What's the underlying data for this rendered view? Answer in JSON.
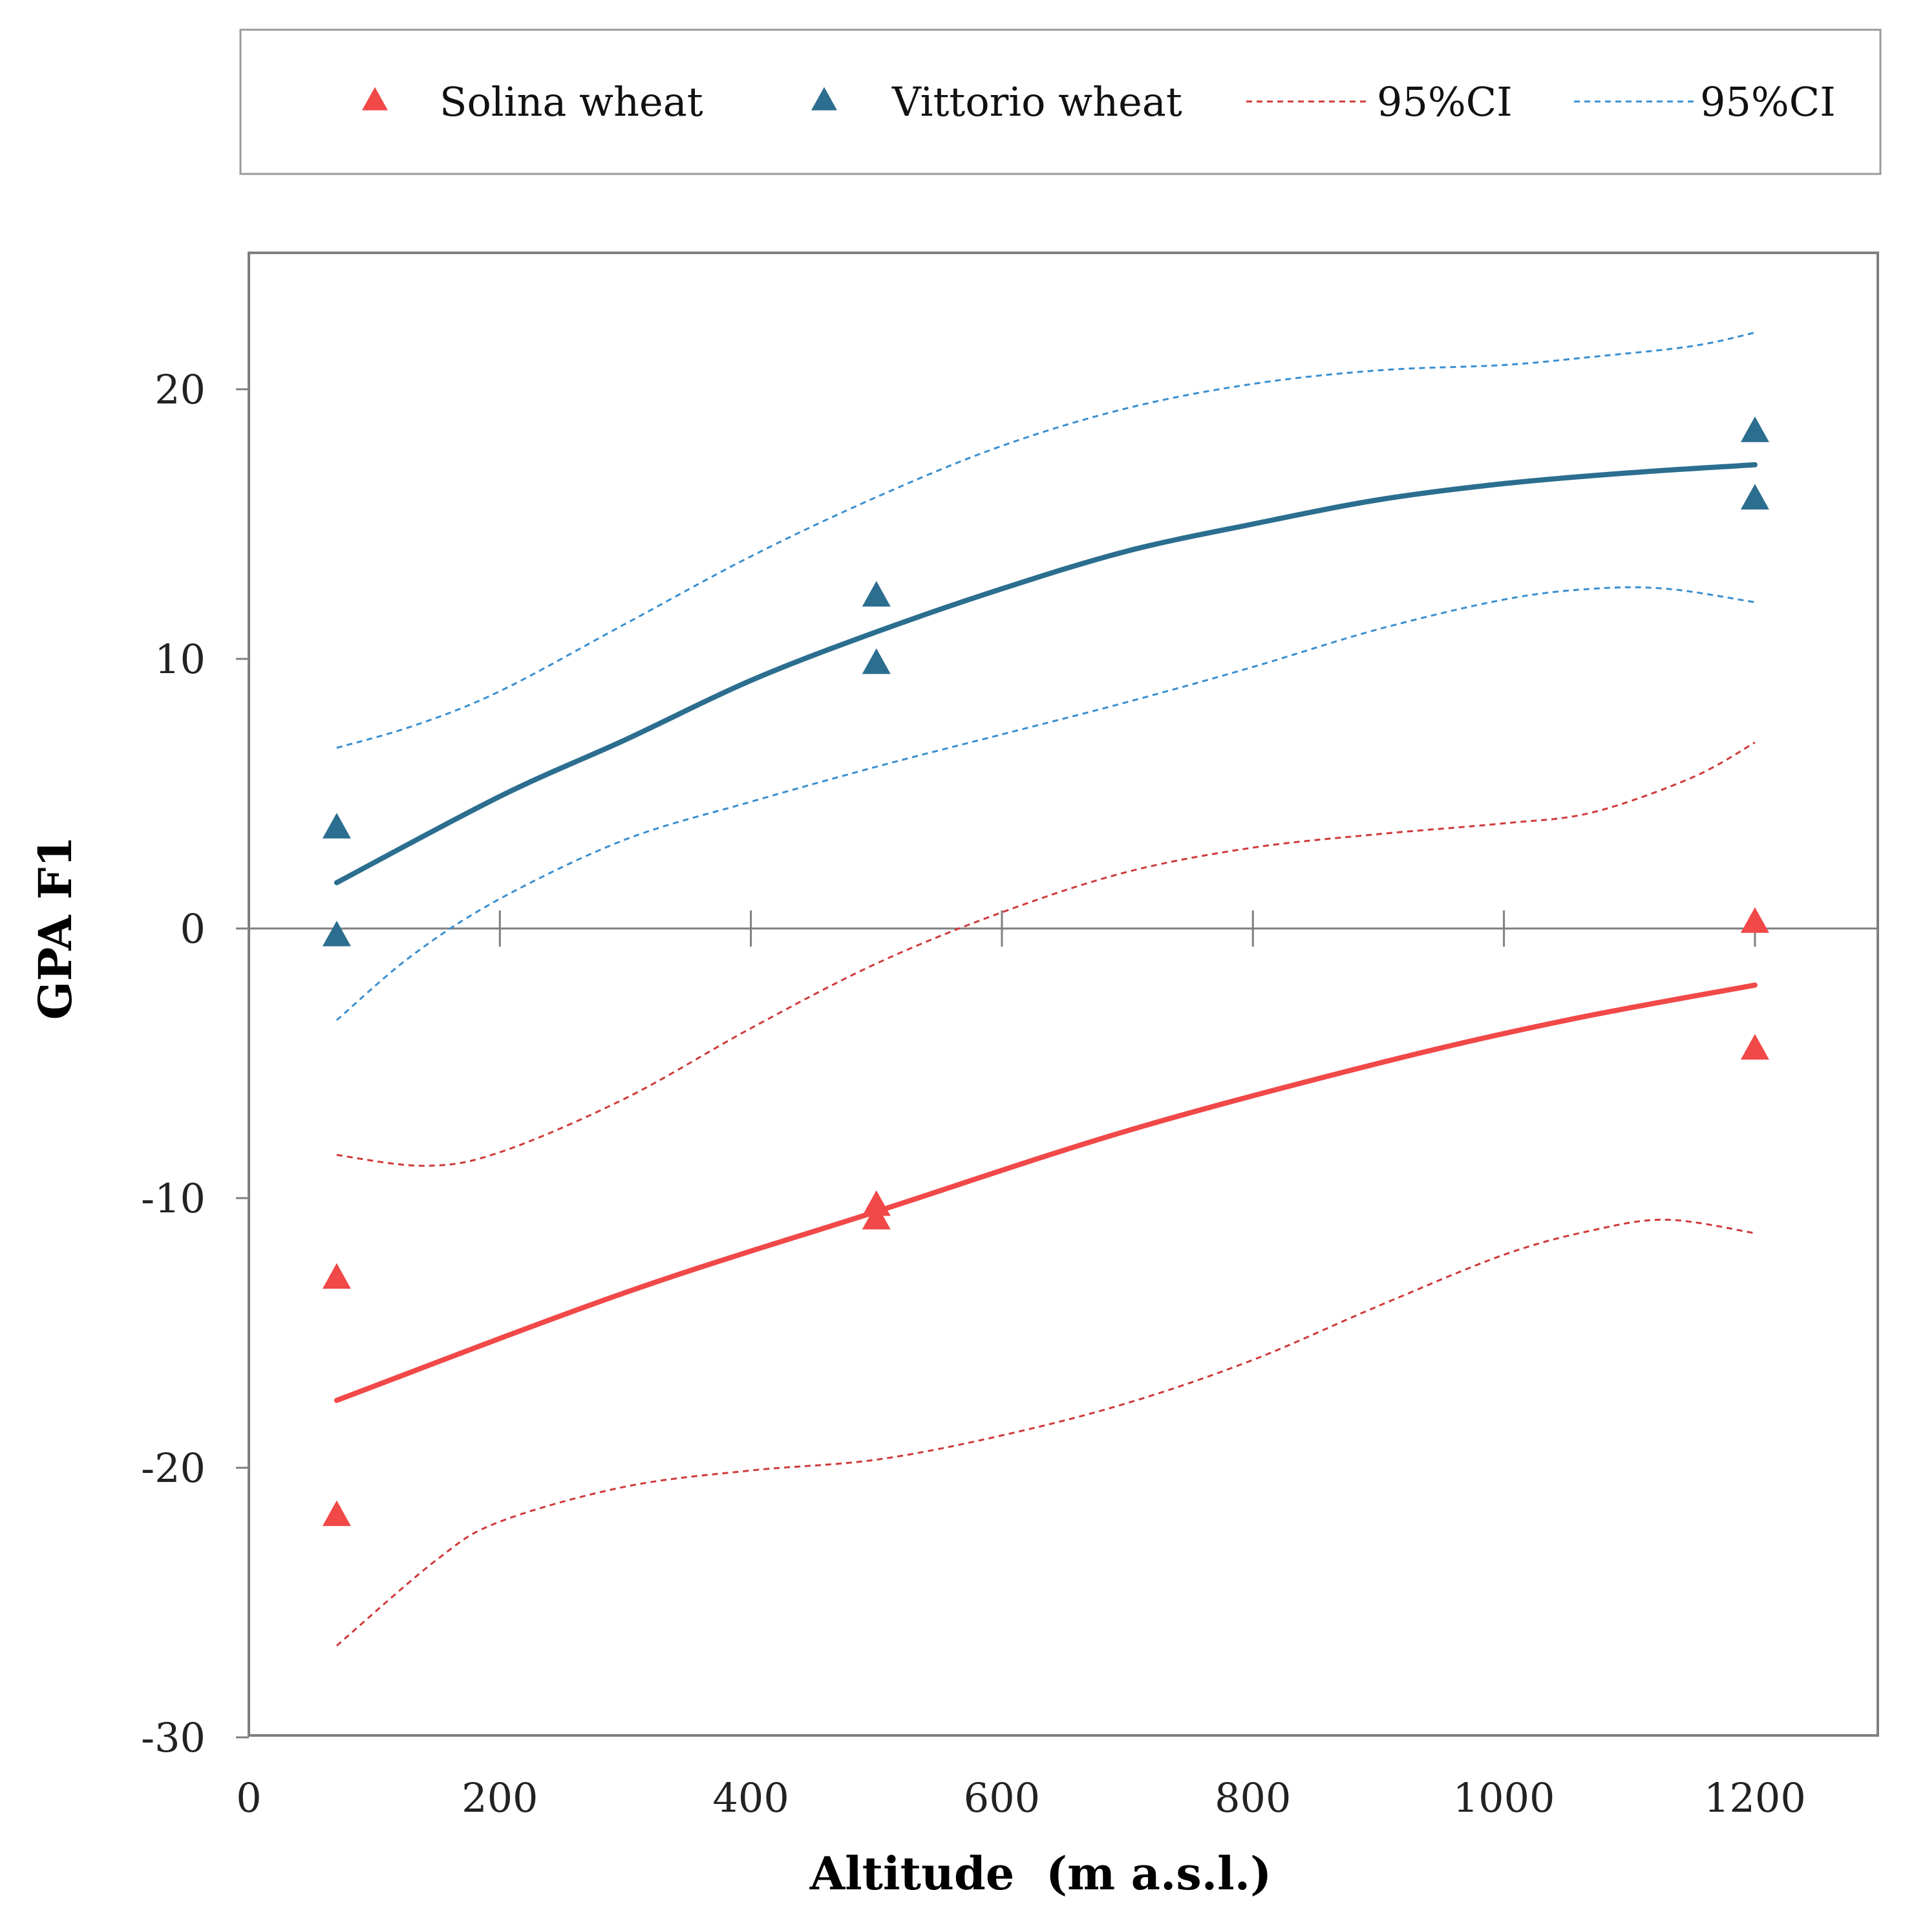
{
  "chart_data": {
    "type": "scatter",
    "xlabel": "Altitude  (m a.s.l.)",
    "ylabel": "GPA F1",
    "xlim": [
      0,
      1300
    ],
    "ylim": [
      -30,
      25
    ],
    "xticks": [
      0,
      200,
      400,
      600,
      800,
      1000,
      1200
    ],
    "yticks": [
      -30,
      -20,
      -10,
      0,
      10,
      20
    ],
    "grid": false,
    "legend_position": "top",
    "legend": [
      {
        "label": "Solina wheat",
        "kind": "marker",
        "color": "#f14848"
      },
      {
        "label": "Vittorio wheat",
        "kind": "marker",
        "color": "#2b6e8f"
      },
      {
        "label": "95%CI",
        "kind": "dashed-line",
        "color": "#d03a3a"
      },
      {
        "label": "95%CI",
        "kind": "dashed-line",
        "color": "#3a8fd0"
      }
    ],
    "series": [
      {
        "name": "Solina wheat",
        "color": "#f14848",
        "points": [
          [
            70,
            -13.0
          ],
          [
            70,
            -21.8
          ],
          [
            500,
            -10.3
          ],
          [
            500,
            -10.8
          ],
          [
            1200,
            0.2
          ],
          [
            1200,
            -4.5
          ]
        ],
        "fit": [
          [
            70,
            -17.5
          ],
          [
            300,
            -13.5
          ],
          [
            500,
            -10.5
          ],
          [
            700,
            -7.5
          ],
          [
            900,
            -5.0
          ],
          [
            1050,
            -3.4
          ],
          [
            1200,
            -2.1
          ]
        ],
        "ci_upper": [
          [
            70,
            -8.4
          ],
          [
            140,
            -8.8
          ],
          [
            200,
            -8.3
          ],
          [
            300,
            -6.3
          ],
          [
            400,
            -3.7
          ],
          [
            500,
            -1.3
          ],
          [
            600,
            0.6
          ],
          [
            700,
            2.1
          ],
          [
            800,
            3.0
          ],
          [
            900,
            3.5
          ],
          [
            1000,
            3.9
          ],
          [
            1070,
            4.3
          ],
          [
            1150,
            5.6
          ],
          [
            1200,
            6.9
          ]
        ],
        "ci_lower": [
          [
            70,
            -26.6
          ],
          [
            150,
            -23.4
          ],
          [
            200,
            -22.0
          ],
          [
            300,
            -20.7
          ],
          [
            400,
            -20.1
          ],
          [
            500,
            -19.7
          ],
          [
            600,
            -18.8
          ],
          [
            700,
            -17.6
          ],
          [
            800,
            -16.0
          ],
          [
            900,
            -14.0
          ],
          [
            1000,
            -12.1
          ],
          [
            1070,
            -11.2
          ],
          [
            1130,
            -10.8
          ],
          [
            1200,
            -11.3
          ]
        ]
      },
      {
        "name": "Vittorio wheat",
        "color": "#2b6e8f",
        "points": [
          [
            70,
            3.7
          ],
          [
            70,
            -0.3
          ],
          [
            500,
            12.3
          ],
          [
            500,
            9.8
          ],
          [
            1200,
            18.4
          ],
          [
            1200,
            15.9
          ]
        ],
        "fit": [
          [
            70,
            1.7
          ],
          [
            200,
            4.9
          ],
          [
            300,
            7.0
          ],
          [
            400,
            9.2
          ],
          [
            500,
            11.0
          ],
          [
            600,
            12.6
          ],
          [
            700,
            14.0
          ],
          [
            800,
            15.0
          ],
          [
            900,
            15.9
          ],
          [
            1000,
            16.5
          ],
          [
            1100,
            16.9
          ],
          [
            1200,
            17.2
          ]
        ],
        "ci_upper": [
          [
            70,
            6.7
          ],
          [
            130,
            7.5
          ],
          [
            200,
            8.8
          ],
          [
            300,
            11.3
          ],
          [
            400,
            13.8
          ],
          [
            500,
            16.0
          ],
          [
            600,
            17.9
          ],
          [
            700,
            19.3
          ],
          [
            800,
            20.2
          ],
          [
            900,
            20.7
          ],
          [
            1000,
            20.9
          ],
          [
            1070,
            21.2
          ],
          [
            1150,
            21.6
          ],
          [
            1200,
            22.1
          ]
        ],
        "ci_lower": [
          [
            70,
            -3.4
          ],
          [
            130,
            -1.0
          ],
          [
            200,
            1.1
          ],
          [
            300,
            3.3
          ],
          [
            400,
            4.7
          ],
          [
            500,
            6.0
          ],
          [
            600,
            7.2
          ],
          [
            700,
            8.4
          ],
          [
            800,
            9.7
          ],
          [
            900,
            11.1
          ],
          [
            1000,
            12.2
          ],
          [
            1070,
            12.6
          ],
          [
            1130,
            12.6
          ],
          [
            1200,
            12.1
          ]
        ]
      }
    ]
  }
}
